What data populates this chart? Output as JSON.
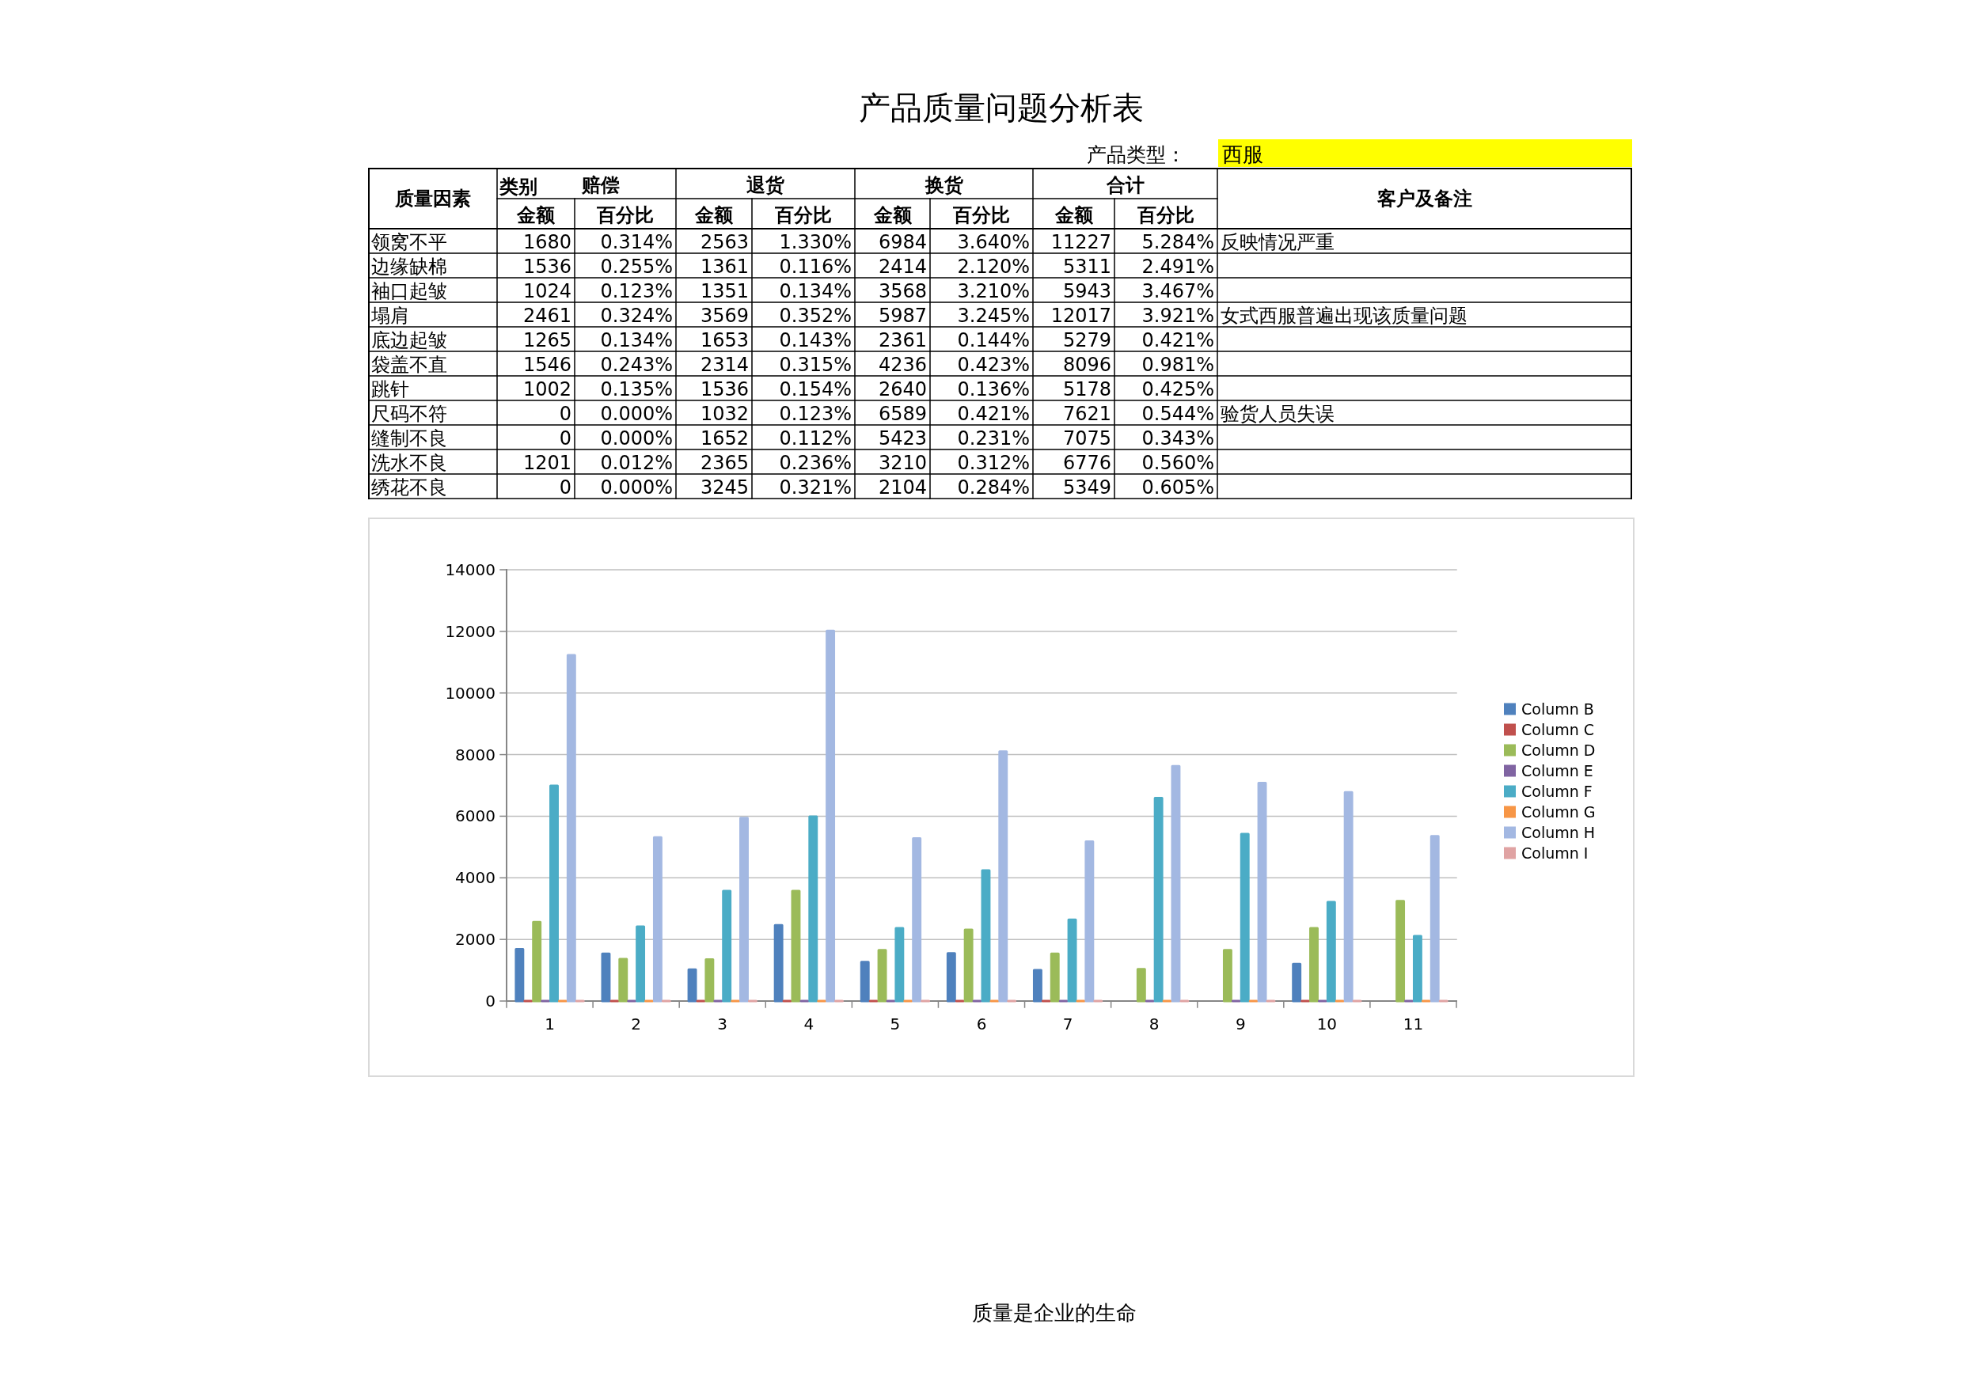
{
  "chart_data": [
    {
      "type": "heatmap",
      "title": "产品质量问题分析表",
      "xlabel": "类别",
      "ylabel": "质量因素",
      "y2label": "客户及备注",
      "categories": [
        "金额",
        "百分比",
        "金额",
        "百分比",
        "金额",
        "百分比",
        "金额",
        "百分比"
      ],
      "y_categories": [
        "领窝不平",
        "边缘缺棉",
        "袖口起皱",
        "塌肩",
        "底边起皱",
        "袋盖不直",
        "跳针",
        "尺码不符",
        "缝制不良",
        "洗水不良",
        "绣花不良"
      ],
      "y2_categories": [
        "反映情况严重",
        null,
        null,
        "女式西服普遍出现该质量问题",
        null,
        null,
        null,
        "验货人员失误",
        null,
        null,
        null
      ],
      "cells": [
        [
          1680,
          0.314,
          2563,
          1.33,
          6984,
          3.64,
          11227,
          5.284
        ],
        [
          1536,
          0.255,
          1361,
          0.116,
          2414,
          2.12,
          5311,
          2.491
        ],
        [
          1024,
          0.123,
          1351,
          0.134,
          3568,
          3.21,
          5943,
          3.467
        ],
        [
          2461,
          0.324,
          3569,
          0.352,
          5987,
          3.245,
          12017,
          3.921
        ],
        [
          1265,
          0.134,
          1653,
          0.143,
          2361,
          0.144,
          5279,
          0.421
        ],
        [
          1546,
          0.243,
          2314,
          0.315,
          4236,
          0.423,
          8096,
          0.981
        ],
        [
          1002,
          0.135,
          1536,
          0.154,
          2640,
          0.136,
          5178,
          0.425
        ],
        [
          0,
          0,
          1032,
          0.123,
          6589,
          0.421,
          7621,
          0.544
        ],
        [
          0,
          0,
          1652,
          0.112,
          5423,
          0.231,
          7075,
          0.343
        ],
        [
          1201,
          0.012,
          2365,
          0.236,
          3210,
          0.312,
          6776,
          0.56
        ],
        [
          0,
          0,
          3245,
          0.321,
          2104,
          0.284,
          5349,
          0.605
        ]
      ],
      "cell_labels": [
        [
          "1680",
          "0.314%",
          "2563",
          "1.330%",
          "6984",
          "3.640%",
          "11227",
          "5.284%"
        ],
        [
          "1536",
          "0.255%",
          "1361",
          "0.116%",
          "2414",
          "2.120%",
          "5311",
          "2.491%"
        ],
        [
          "1024",
          "0.123%",
          "1351",
          "0.134%",
          "3568",
          "3.210%",
          "5943",
          "3.467%"
        ],
        [
          "2461",
          "0.324%",
          "3569",
          "0.352%",
          "5987",
          "3.245%",
          "12017",
          "3.921%"
        ],
        [
          "1265",
          "0.134%",
          "1653",
          "0.143%",
          "2361",
          "0.144%",
          "5279",
          "0.421%"
        ],
        [
          "1546",
          "0.243%",
          "2314",
          "0.315%",
          "4236",
          "0.423%",
          "8096",
          "0.981%"
        ],
        [
          "1002",
          "0.135%",
          "1536",
          "0.154%",
          "2640",
          "0.136%",
          "5178",
          "0.425%"
        ],
        [
          "0",
          "0.000%",
          "1032",
          "0.123%",
          "6589",
          "0.421%",
          "7621",
          "0.544%"
        ],
        [
          "0",
          "0.000%",
          "1652",
          "0.112%",
          "5423",
          "0.231%",
          "7075",
          "0.343%"
        ],
        [
          "1201",
          "0.012%",
          "2365",
          "0.236%",
          "3210",
          "0.312%",
          "6776",
          "0.560%"
        ],
        [
          "0",
          "0.000%",
          "3245",
          "0.321%",
          "2104",
          "0.284%",
          "5349",
          "0.605%"
        ]
      ],
      "annotations": [
        "产品类型：",
        "西服",
        "赔偿",
        "退货",
        "换货",
        "合计"
      ]
    },
    {
      "type": "bar",
      "categories": [
        "1",
        "2",
        "3",
        "4",
        "5",
        "6",
        "7",
        "8",
        "9",
        "10",
        "11"
      ],
      "series": [
        {
          "name": "Column B",
          "color": "#4f81bd",
          "values": [
            1680,
            1536,
            1024,
            2461,
            1265,
            1546,
            1002,
            0,
            0,
            1201,
            0
          ]
        },
        {
          "name": "Column C",
          "color": "#c0504d",
          "values": [
            0.00314,
            0.00255,
            0.00123,
            0.00324,
            0.00134,
            0.00243,
            0.00135,
            0,
            0,
            0.00012,
            0
          ]
        },
        {
          "name": "Column D",
          "color": "#9bbb59",
          "values": [
            2563,
            1361,
            1351,
            3569,
            1653,
            2314,
            1536,
            1032,
            1652,
            2365,
            3245
          ]
        },
        {
          "name": "Column E",
          "color": "#8064a2",
          "values": [
            0.0133,
            0.00116,
            0.00134,
            0.00352,
            0.00143,
            0.00315,
            0.00154,
            0.00123,
            0.00112,
            0.00236,
            0.00321
          ]
        },
        {
          "name": "Column F",
          "color": "#4bacc6",
          "values": [
            6984,
            2414,
            3568,
            5987,
            2361,
            4236,
            2640,
            6589,
            5423,
            3210,
            2104
          ]
        },
        {
          "name": "Column G",
          "color": "#f79646",
          "values": [
            0.0364,
            0.0212,
            0.0321,
            0.03245,
            0.00144,
            0.00423,
            0.00136,
            0.00421,
            0.00231,
            0.00312,
            0.00284
          ]
        },
        {
          "name": "Column H",
          "color": "#a3b8e2",
          "values": [
            11227,
            5311,
            5943,
            12017,
            5279,
            8096,
            5178,
            7621,
            7075,
            6776,
            5349
          ]
        },
        {
          "name": "Column I",
          "color": "#e0a3a3",
          "values": [
            0.05284,
            0.02491,
            0.03467,
            0.03921,
            0.00421,
            0.00981,
            0.00425,
            0.00544,
            0.00343,
            0.0056,
            0.00605
          ]
        }
      ],
      "ylim": [
        0,
        14000
      ],
      "yticks": [
        0,
        2000,
        4000,
        6000,
        8000,
        10000,
        12000,
        14000
      ],
      "grid": "y",
      "legend": "right",
      "annotations": [
        "质量是企业的生命"
      ]
    }
  ]
}
